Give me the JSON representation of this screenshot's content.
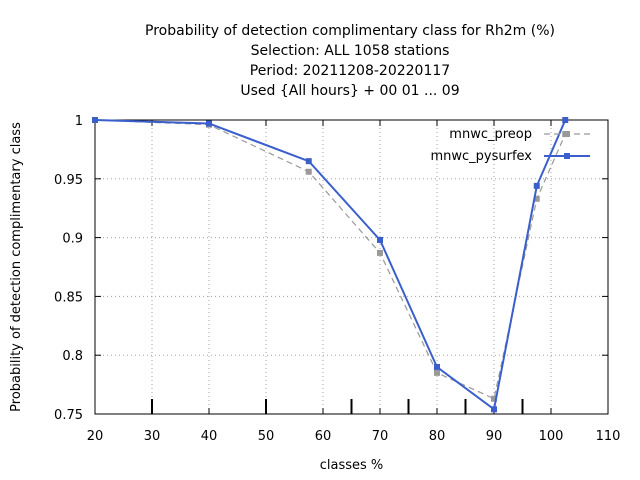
{
  "titles": [
    "Probability of detection complimentary class  for Rh2m (%)",
    "Selection: ALL    1058 stations",
    "Period: 20211208-20220117",
    "Used {All hours} + 00 01 ... 09"
  ],
  "colors": {
    "preop": "#999999",
    "pysurfex": "#3a5fcd",
    "grid": "#a0a0a0",
    "axis": "#000000"
  },
  "chart_data": {
    "type": "line",
    "xlabel": "classes %",
    "ylabel": "Probability of detection complimentary class",
    "xlim": [
      20,
      110
    ],
    "ylim": [
      0.75,
      1.0
    ],
    "xticks": [
      20,
      30,
      40,
      50,
      60,
      70,
      80,
      90,
      100,
      110
    ],
    "xtick_labels": [
      "20",
      "30",
      "40",
      "50",
      "60",
      "70",
      "80",
      "90",
      "100",
      "110"
    ],
    "yticks": [
      0.75,
      0.8,
      0.85,
      0.9,
      0.95,
      1.0
    ],
    "ytick_labels": [
      "0.75",
      "0.8",
      "0.85",
      "0.9",
      "0.95",
      "1"
    ],
    "class_marks": [
      30,
      50,
      65,
      75,
      85,
      95
    ],
    "grid": true,
    "legend_position": "top-right",
    "series": [
      {
        "name": "mnwc_preop",
        "style": "dashed",
        "x": [
          20,
          40,
          57.5,
          70,
          80,
          90,
          97.5,
          102.5
        ],
        "y": [
          1.0,
          0.996,
          0.956,
          0.887,
          0.785,
          0.763,
          0.933,
          0.988
        ]
      },
      {
        "name": "mnwc_pysurfex",
        "style": "solid",
        "x": [
          20,
          40,
          57.5,
          70,
          80,
          90,
          97.5,
          102.5
        ],
        "y": [
          1.0,
          0.997,
          0.965,
          0.898,
          0.79,
          0.754,
          0.944,
          1.0
        ]
      }
    ]
  }
}
